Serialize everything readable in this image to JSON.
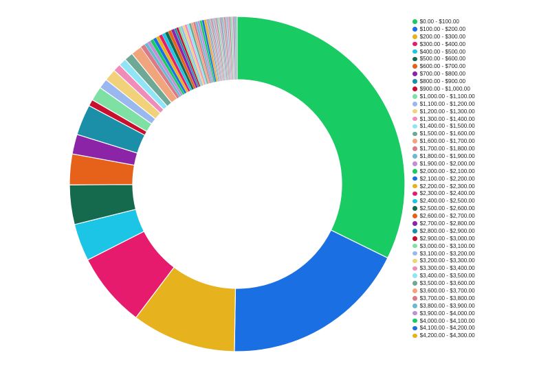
{
  "chart_data": {
    "type": "pie",
    "donut": true,
    "legend_position": "right",
    "categories": [
      "$0.00 - $100.00",
      "$100.00 - $200.00",
      "$200.00 - $300.00",
      "$300.00 - $400.00",
      "$400.00 - $500.00",
      "$500.00 - $600.00",
      "$600.00 - $700.00",
      "$700.00 - $800.00",
      "$800.00 - $900.00",
      "$900.00 - $1,000.00",
      "$1,000.00 - $1,100.00",
      "$1,100.00 - $1,200.00",
      "$1,200.00 - $1,300.00",
      "$1,300.00 - $1,400.00",
      "$1,400.00 - $1,500.00",
      "$1,500.00 - $1,600.00",
      "$1,600.00 - $1,700.00",
      "$1,700.00 - $1,800.00",
      "$1,800.00 - $1,900.00",
      "$1,900.00 - $2,000.00",
      "$2,000.00 - $2,100.00",
      "$2,100.00 - $2,200.00",
      "$2,200.00 - $2,300.00",
      "$2,300.00 - $2,400.00",
      "$2,400.00 - $2,500.00",
      "$2,500.00 - $2,600.00",
      "$2,600.00 - $2,700.00",
      "$2,700.00 - $2,800.00",
      "$2,800.00 - $2,900.00",
      "$2,900.00 - $3,000.00",
      "$3,000.00 - $3,100.00",
      "$3,100.00 - $3,200.00",
      "$3,200.00 - $3,300.00",
      "$3,300.00 - $3,400.00",
      "$3,400.00 - $3,500.00",
      "$3,500.00 - $3,600.00",
      "$3,600.00 - $3,700.00",
      "$3,700.00 - $3,800.00",
      "$3,800.00 - $3,900.00",
      "$3,900.00 - $4,000.00",
      "$4,000.00 - $4,100.00",
      "$4,100.00 - $4,200.00",
      "$4,200.00 - $4,300.00"
    ],
    "values": [
      30.5,
      17.0,
      9.5,
      6.8,
      3.4,
      3.6,
      2.8,
      1.8,
      2.8,
      0.6,
      1.3,
      0.9,
      1.1,
      0.7,
      0.7,
      0.8,
      1.0,
      0.4,
      0.3,
      0.3,
      0.3,
      0.3,
      0.3,
      0.3,
      0.3,
      0.3,
      0.3,
      0.3,
      0.2,
      0.2,
      0.2,
      0.2,
      0.2,
      0.2,
      0.2,
      0.2,
      0.2,
      0.2,
      0.2,
      0.2,
      0.2,
      0.2,
      0.2
    ],
    "colors": [
      "#19cb63",
      "#1a6fe3",
      "#e6b21e",
      "#e61b6e",
      "#1cc4e6",
      "#156a4e",
      "#e6611a",
      "#8c24a8",
      "#1b8fa8",
      "#c8102e",
      "#7fe0a4",
      "#9ab8f0",
      "#f1d27a",
      "#f08cba",
      "#8fe4f5",
      "#6fa895",
      "#f1a57d",
      "#d97a8a",
      "#6dbad0",
      "#c08fd8",
      "#19cb63",
      "#1a6fe3",
      "#e6b21e",
      "#e61b6e",
      "#1cc4e6",
      "#156a4e",
      "#e6611a",
      "#8c24a8",
      "#1b8fa8",
      "#c8102e",
      "#7fe0a4",
      "#9ab8f0",
      "#f1d27a",
      "#f08cba",
      "#8fe4f5",
      "#6fa895",
      "#f1a57d",
      "#d97a8a",
      "#6dbad0",
      "#c08fd8",
      "#19cb63",
      "#1a6fe3",
      "#e6b21e"
    ],
    "tail_count": 28,
    "tail_colors": [
      "#c08fd8",
      "#8a8a8a",
      "#6dbad0",
      "#b0b0b0",
      "#d97a8a",
      "#999999",
      "#9ab8f0",
      "#a0a0a0",
      "#f08cba",
      "#8a8a8a",
      "#7fe0a4",
      "#b8b8b8"
    ]
  }
}
